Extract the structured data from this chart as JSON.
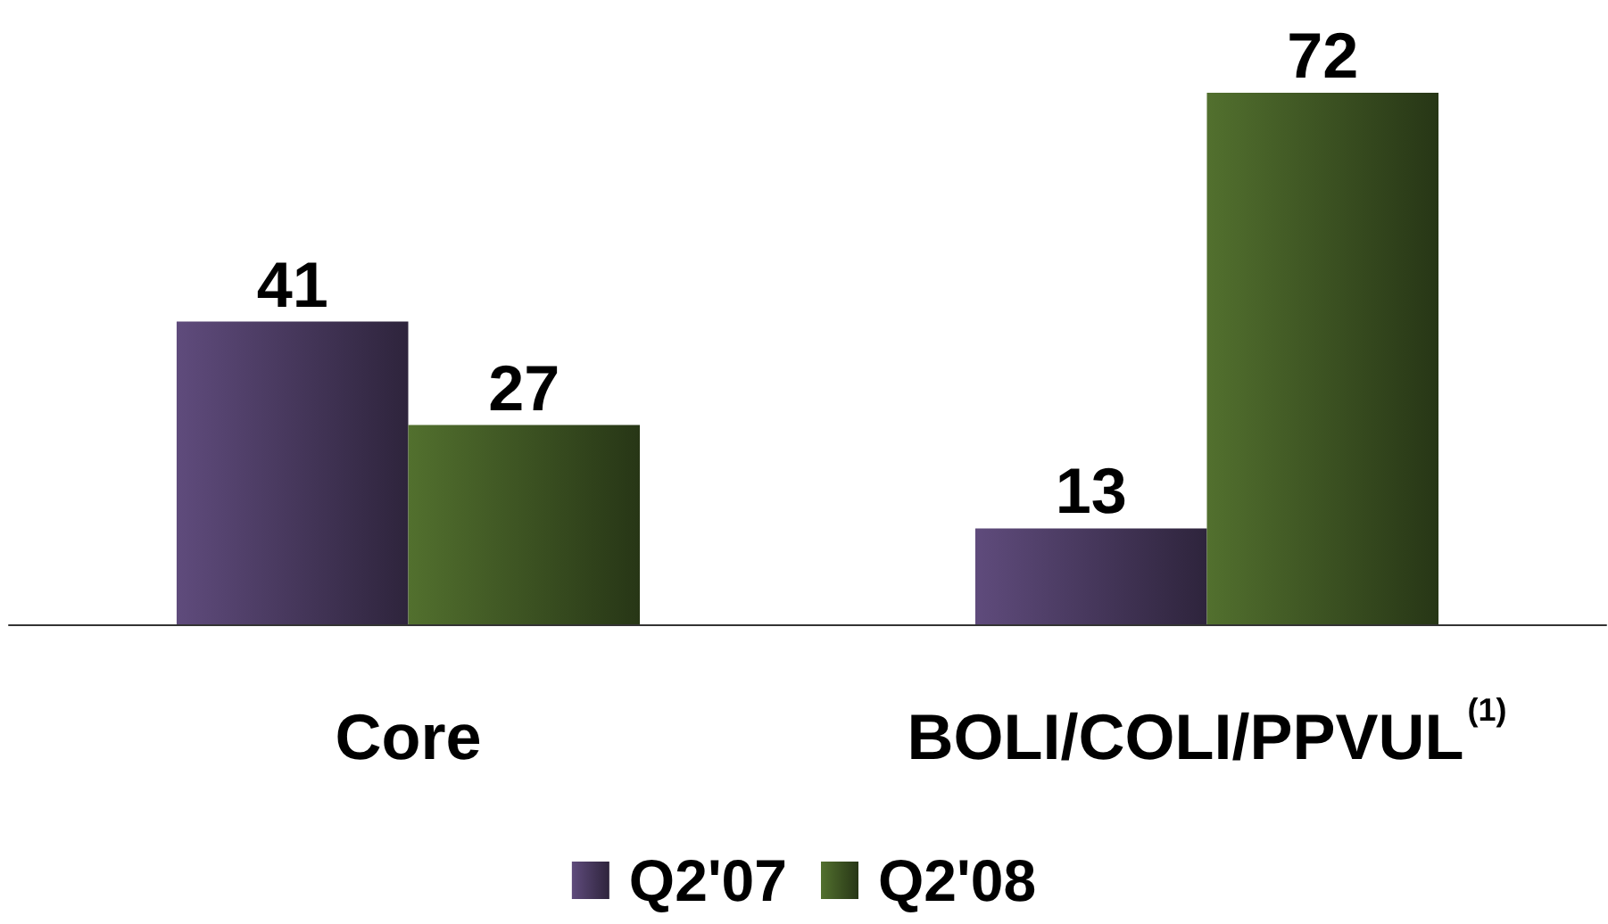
{
  "chart_data": {
    "type": "bar",
    "categories": [
      "Core",
      "BOLI/COLI/PPVUL$^{(1)}$"
    ],
    "series": [
      {
        "name": "Q2'07",
        "color": "#5f4b7c",
        "values": [
          41,
          13
        ]
      },
      {
        "name": "Q2'08",
        "color": "#52702e",
        "values": [
          27,
          72
        ]
      }
    ],
    "data_labels": true,
    "legend": "bottom"
  }
}
